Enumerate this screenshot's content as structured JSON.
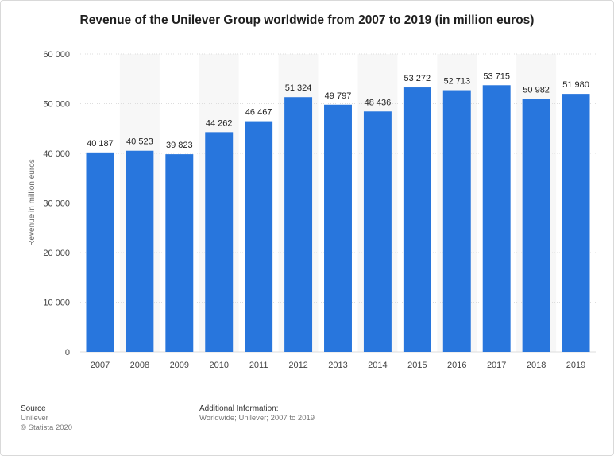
{
  "chart_data": {
    "type": "bar",
    "title": "Revenue of the Unilever Group worldwide from 2007 to 2019 (in million euros)",
    "xlabel": "",
    "ylabel": "Revenue in million euros",
    "categories": [
      "2007",
      "2008",
      "2009",
      "2010",
      "2011",
      "2012",
      "2013",
      "2014",
      "2015",
      "2016",
      "2017",
      "2018",
      "2019"
    ],
    "values": [
      40187,
      40523,
      39823,
      44262,
      46467,
      51324,
      49797,
      48436,
      53272,
      52713,
      53715,
      50982,
      51980
    ],
    "value_labels": [
      "40 187",
      "40 523",
      "39 823",
      "44 262",
      "46 467",
      "51 324",
      "49 797",
      "48 436",
      "53 272",
      "52 713",
      "53 715",
      "50 982",
      "51 980"
    ],
    "ylim": [
      0,
      60000
    ],
    "yticks": [
      0,
      10000,
      20000,
      30000,
      40000,
      50000,
      60000
    ],
    "ytick_labels": [
      "0",
      "10 000",
      "20 000",
      "30 000",
      "40 000",
      "50 000",
      "60 000"
    ],
    "grid": true,
    "colors": {
      "bar": "#2876dd",
      "stripe": "#f7f7f7",
      "grid": "#dddddd"
    }
  },
  "footer": {
    "source_label": "Source",
    "source_lines": [
      "Unilever",
      "© Statista 2020"
    ],
    "additional_label": "Additional Information:",
    "additional_text": "Worldwide; Unilever; 2007 to 2019"
  }
}
